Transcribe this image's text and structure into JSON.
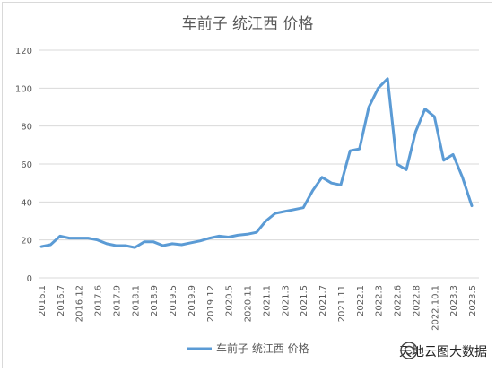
{
  "chart_data": {
    "type": "line",
    "title": "车前子 统江西 价格",
    "xlabel": "",
    "ylabel": "",
    "ylim": [
      0,
      120
    ],
    "yticks": [
      0,
      20,
      40,
      60,
      80,
      100,
      120
    ],
    "grid": true,
    "legend_position": "bottom",
    "x_tick_labels": [
      "2016.1",
      "2016.7",
      "2016.12",
      "2017.6",
      "2017.9",
      "2018.1",
      "2018.9",
      "2019.5",
      "2019.9",
      "2019.12",
      "2020.5",
      "2020.11",
      "2021.1",
      "2021.3",
      "2021.5",
      "2021.7",
      "2021.11",
      "2022.1",
      "2022.3",
      "2022.6",
      "2022.8",
      "2022.10.1",
      "2023.3",
      "2023.5"
    ],
    "series": [
      {
        "name": "车前子 统江西 价格",
        "color": "#5b9bd5",
        "values": [
          16.5,
          17.5,
          22,
          21,
          21,
          21,
          20,
          18,
          17,
          17,
          16,
          19,
          19,
          17,
          18,
          17.5,
          18.5,
          19.5,
          21,
          22,
          21.5,
          22.5,
          23,
          24,
          30,
          34,
          35,
          36,
          37,
          46,
          53,
          50,
          49,
          67,
          68,
          90,
          100,
          105,
          60,
          57,
          77,
          89,
          85,
          62,
          65,
          53,
          38
        ]
      }
    ]
  },
  "watermark": {
    "text": "天地云图大数据",
    "icon": "wechat-official-account-icon"
  }
}
